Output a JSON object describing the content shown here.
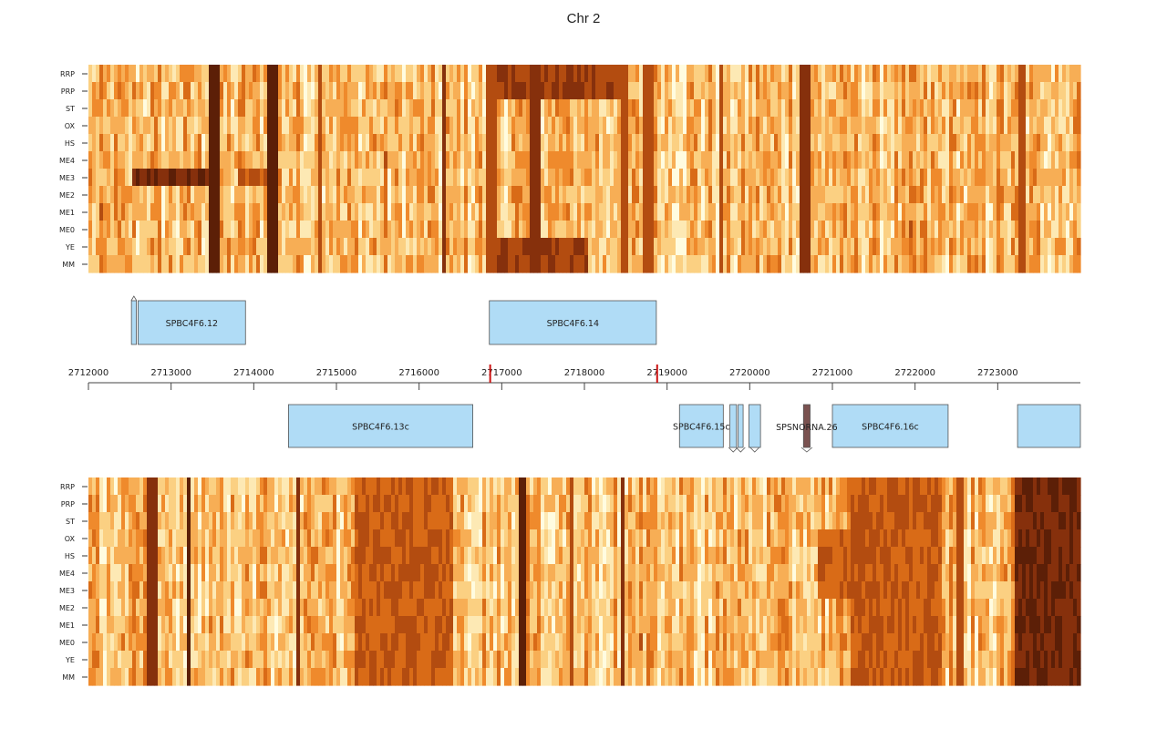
{
  "title": "Chr 2",
  "chart_data": {
    "type": "heatmap",
    "title": "Chr 2",
    "x_range": [
      2712000,
      2724000
    ],
    "x_ticks": [
      2712000,
      2713000,
      2714000,
      2715000,
      2716000,
      2717000,
      2718000,
      2719000,
      2720000,
      2721000,
      2722000,
      2723000
    ],
    "tick_labels": [
      "2712000",
      "2713000",
      "2714000",
      "2715000",
      "2716000",
      "2717000",
      "2718000",
      "2719000",
      "2720000",
      "2721000",
      "2722000",
      "2723000"
    ],
    "tracks": [
      {
        "name": "top-strand",
        "row_labels": [
          "RRP",
          "PRP",
          "ST",
          "OX",
          "HS",
          "ME4",
          "ME3",
          "ME2",
          "ME1",
          "ME0",
          "YE",
          "MM"
        ]
      },
      {
        "name": "bottom-strand",
        "row_labels": [
          "RRP",
          "PRP",
          "ST",
          "OX",
          "HS",
          "ME4",
          "ME3",
          "ME2",
          "ME1",
          "ME0",
          "YE",
          "MM"
        ]
      }
    ],
    "heatmap_colors": [
      "#fffce0",
      "#fde9b4",
      "#fbd082",
      "#f7ae55",
      "#ef8a2c",
      "#d96b17",
      "#b34c10",
      "#86300c",
      "#5c1f07"
    ],
    "dark_bands_top": [
      [
        2713450,
        2713550,
        8
      ],
      [
        2714150,
        2714250,
        8
      ],
      [
        2714750,
        2714800,
        6
      ],
      [
        2716250,
        2716300,
        7
      ],
      [
        2716800,
        2716900,
        6
      ],
      [
        2717300,
        2717450,
        7
      ],
      [
        2718400,
        2718500,
        6
      ],
      [
        2718700,
        2718800,
        6
      ],
      [
        2719600,
        2719650,
        6
      ],
      [
        2720600,
        2720700,
        7
      ],
      [
        2723250,
        2723300,
        6
      ]
    ],
    "dark_blocks_top": [
      [
        2716900,
        2718400,
        0,
        2,
        6
      ],
      [
        2712500,
        2713500,
        6,
        7,
        7
      ],
      [
        2713800,
        2714200,
        6,
        7,
        5
      ],
      [
        2716900,
        2718000,
        10,
        12,
        6
      ]
    ],
    "dark_bands_bottom": [
      [
        2712700,
        2712800,
        7
      ],
      [
        2713150,
        2713200,
        8
      ],
      [
        2714500,
        2714550,
        7
      ],
      [
        2717200,
        2717250,
        8
      ],
      [
        2717800,
        2717850,
        6
      ],
      [
        2718400,
        2718450,
        7
      ],
      [
        2722500,
        2722550,
        6
      ]
    ],
    "dark_blocks_bottom": [
      [
        2715200,
        2716400,
        0,
        12,
        5
      ],
      [
        2721200,
        2722300,
        0,
        12,
        5
      ],
      [
        2723200,
        2724000,
        0,
        12,
        7
      ],
      [
        2720800,
        2721500,
        3,
        7,
        5
      ]
    ],
    "genes_top": [
      {
        "label": "SPBC4F6.12",
        "start": 2712600,
        "end": 2713900,
        "color": "#b0dcf6"
      },
      {
        "label": "SPBC4F6.14",
        "start": 2716850,
        "end": 2718870,
        "color": "#b0dcf6"
      }
    ],
    "genes_top_small": [
      {
        "start": 2712520,
        "end": 2712580,
        "color": "#b0dcf6",
        "arrow": "up"
      }
    ],
    "genes_bottom": [
      {
        "label": "SPBC4F6.13c",
        "start": 2714420,
        "end": 2716650,
        "color": "#b0dcf6"
      },
      {
        "label": "SPBC4F6.15c",
        "start": 2719150,
        "end": 2719680,
        "color": "#b0dcf6"
      },
      {
        "label": "SPBC4F6.16c",
        "start": 2721000,
        "end": 2722400,
        "color": "#b0dcf6"
      },
      {
        "label": "",
        "start": 2723240,
        "end": 2724000,
        "color": "#b0dcf6"
      }
    ],
    "genes_bottom_small": [
      {
        "start": 2719760,
        "end": 2719840,
        "color": "#b0dcf6",
        "arrow": "down"
      },
      {
        "start": 2719860,
        "end": 2719920,
        "color": "#b0dcf6",
        "arrow": "down"
      },
      {
        "start": 2719990,
        "end": 2720130,
        "color": "#b0dcf6",
        "arrow": "down"
      }
    ],
    "ncrna": [
      {
        "label": "SPSNORNA.26",
        "start": 2720650,
        "end": 2720730,
        "color": "#7a5250",
        "arrow": "down"
      }
    ],
    "red_markers": [
      2716860,
      2718880
    ]
  }
}
